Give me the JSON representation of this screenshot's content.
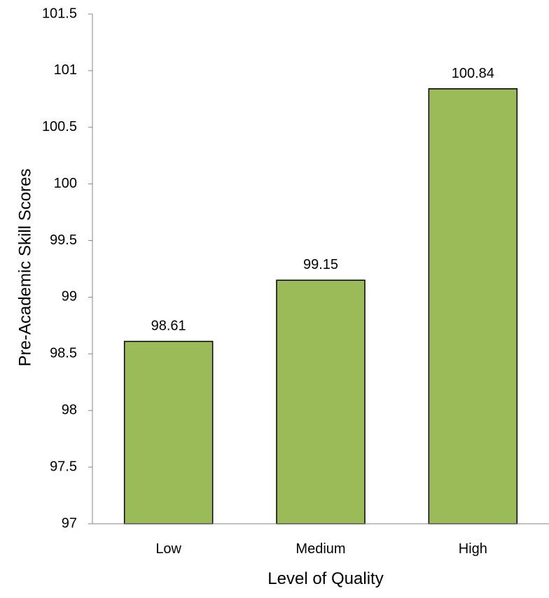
{
  "chart_data": {
    "type": "bar",
    "title": "",
    "xlabel": "Level of Quality",
    "ylabel": "Pre-Academic Skill Scores",
    "categories": [
      "Low",
      "Medium",
      "High"
    ],
    "values": [
      98.61,
      99.15,
      100.84
    ],
    "data_labels": [
      "98.61",
      "99.15",
      "100.84"
    ],
    "ylim": [
      97,
      101.5
    ],
    "yticks": [
      97,
      97.5,
      98,
      98.5,
      99,
      99.5,
      100,
      100.5,
      101,
      101.5
    ],
    "ytick_labels": [
      "97",
      "97.5",
      "98",
      "98.5",
      "99",
      "99.5",
      "100",
      "100.5",
      "101",
      "101.5"
    ],
    "grid": false,
    "legend": "none",
    "colors": {
      "bar_fill": "#9BBB59",
      "bar_stroke": "#000000",
      "axis": "#868686"
    }
  }
}
